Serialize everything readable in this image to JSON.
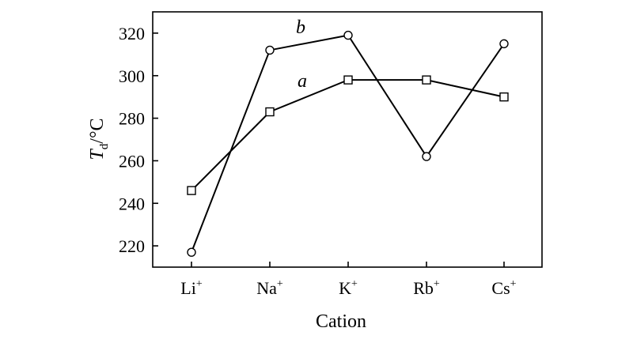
{
  "chart_data": {
    "type": "line",
    "categories": [
      "Li",
      "Na",
      "K",
      "Rb",
      "Cs"
    ],
    "category_superscript": "+",
    "series": [
      {
        "name": "a",
        "marker": "square",
        "values": [
          246,
          283,
          298,
          298,
          290
        ]
      },
      {
        "name": "b",
        "marker": "circle",
        "values": [
          217,
          312,
          319,
          262,
          315
        ]
      }
    ],
    "xlabel": "Cation",
    "ylabel": {
      "main": "T",
      "subscript": "d",
      "unit": "/°C"
    },
    "ylim": [
      210,
      330
    ],
    "yticks": [
      220,
      240,
      260,
      280,
      300,
      320
    ],
    "grid": false,
    "colors": {
      "line": "#000000",
      "marker_fill": "#ffffff",
      "background": "#ffffff"
    }
  }
}
